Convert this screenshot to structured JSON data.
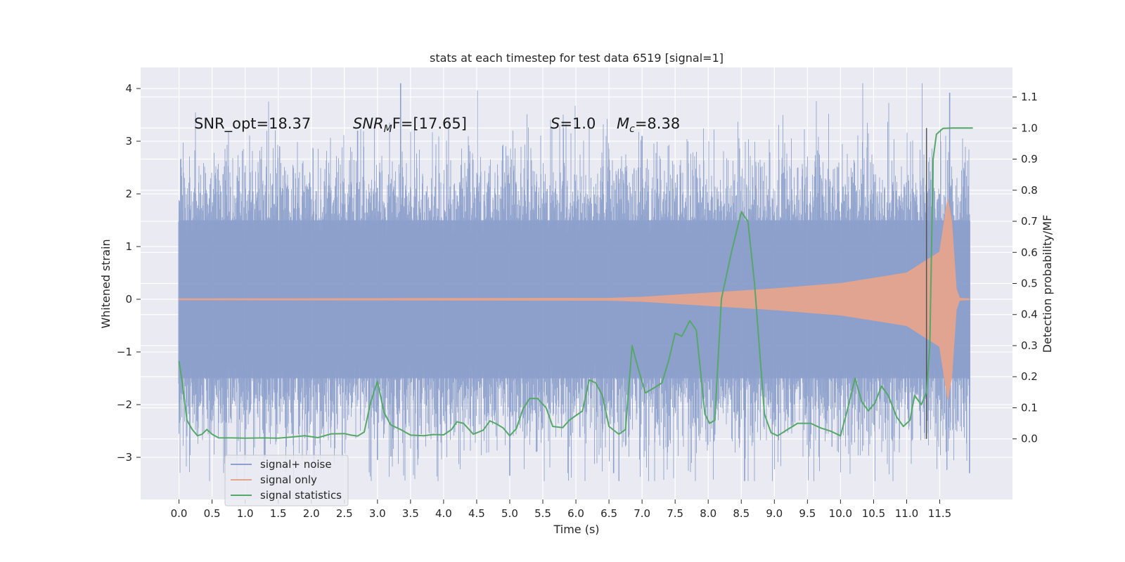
{
  "chart_data": {
    "type": "line",
    "title": "stats at each timestep for test data 6519 [signal=1]",
    "xlabel": "Time (s)",
    "ylabel": "Whitened strain",
    "ylabel_right": "Detection probability/MF",
    "xlim": [
      -0.58,
      12.6
    ],
    "ylim": [
      -3.8,
      4.4
    ],
    "ylim_right": [
      -0.195,
      1.195
    ],
    "x_ticks": [
      "0.0",
      "0.5",
      "1.0",
      "1.5",
      "2.0",
      "2.5",
      "3.0",
      "3.5",
      "4.0",
      "4.5",
      "5.0",
      "5.5",
      "6.0",
      "6.5",
      "7.0",
      "7.5",
      "8.0",
      "8.5",
      "9.0",
      "9.5",
      "10.0",
      "10.5",
      "11.0",
      "11.5"
    ],
    "y_ticks": [
      "4",
      "3",
      "2",
      "1",
      "0",
      "−1",
      "−2",
      "−3"
    ],
    "y_ticks_right": [
      "1.1",
      "1.0",
      "0.9",
      "0.8",
      "0.7",
      "0.6",
      "0.5",
      "0.4",
      "0.3",
      "0.2",
      "0.1",
      "0.0"
    ],
    "grid": true,
    "legend_position": "lower-left",
    "annotations": {
      "snr_opt": "SNR_opt=18.37",
      "snr_mf_label": "SNR",
      "snr_mf_sub": "M",
      "snr_mf_rest": "F=[17.65]",
      "s_label": "S",
      "s_rest": "=1.0",
      "mc_label": "M",
      "mc_sub": "c",
      "mc_rest": "=8.38"
    },
    "vline_x": 11.3,
    "series": [
      {
        "name": "signal+ noise",
        "color": "#8da0cb",
        "x_range": [
          0.0,
          11.95
        ],
        "envelope_upper": 1.5,
        "envelope_lower": -1.5,
        "peak_max": 4.1,
        "peak_min": -3.45
      },
      {
        "name": "signal only",
        "color": "#e5a48c",
        "chirp_peak_time": 11.65,
        "amplitude_points": [
          [
            0.0,
            0.01
          ],
          [
            6.5,
            0.02
          ],
          [
            7.0,
            0.04
          ],
          [
            8.0,
            0.12
          ],
          [
            9.0,
            0.2
          ],
          [
            10.0,
            0.3
          ],
          [
            11.0,
            0.5
          ],
          [
            11.5,
            0.9
          ],
          [
            11.62,
            1.9
          ],
          [
            11.68,
            1.5
          ],
          [
            11.75,
            0.2
          ],
          [
            11.8,
            0.02
          ],
          [
            11.95,
            0.01
          ]
        ]
      },
      {
        "name": "signal statistics",
        "color": "#55a868",
        "axis": "right",
        "points": [
          [
            0.0,
            0.25
          ],
          [
            0.05,
            0.18
          ],
          [
            0.12,
            0.06
          ],
          [
            0.2,
            0.03
          ],
          [
            0.28,
            0.01
          ],
          [
            0.35,
            0.015
          ],
          [
            0.42,
            0.03
          ],
          [
            0.5,
            0.015
          ],
          [
            0.6,
            0.003
          ],
          [
            0.8,
            0.003
          ],
          [
            1.0,
            0.002
          ],
          [
            1.3,
            0.003
          ],
          [
            1.5,
            0.002
          ],
          [
            1.7,
            0.006
          ],
          [
            1.9,
            0.01
          ],
          [
            2.1,
            0.004
          ],
          [
            2.3,
            0.016
          ],
          [
            2.5,
            0.017
          ],
          [
            2.6,
            0.012
          ],
          [
            2.7,
            0.009
          ],
          [
            2.8,
            0.022
          ],
          [
            2.9,
            0.12
          ],
          [
            3.0,
            0.185
          ],
          [
            3.1,
            0.085
          ],
          [
            3.2,
            0.045
          ],
          [
            3.35,
            0.03
          ],
          [
            3.5,
            0.012
          ],
          [
            3.7,
            0.01
          ],
          [
            3.85,
            0.014
          ],
          [
            4.0,
            0.013
          ],
          [
            4.12,
            0.03
          ],
          [
            4.2,
            0.055
          ],
          [
            4.3,
            0.05
          ],
          [
            4.45,
            0.015
          ],
          [
            4.6,
            0.028
          ],
          [
            4.7,
            0.058
          ],
          [
            4.8,
            0.048
          ],
          [
            4.9,
            0.035
          ],
          [
            5.0,
            0.01
          ],
          [
            5.1,
            0.033
          ],
          [
            5.2,
            0.096
          ],
          [
            5.3,
            0.13
          ],
          [
            5.42,
            0.13
          ],
          [
            5.55,
            0.1
          ],
          [
            5.65,
            0.04
          ],
          [
            5.8,
            0.036
          ],
          [
            5.9,
            0.06
          ],
          [
            6.0,
            0.075
          ],
          [
            6.1,
            0.09
          ],
          [
            6.2,
            0.19
          ],
          [
            6.3,
            0.18
          ],
          [
            6.4,
            0.14
          ],
          [
            6.5,
            0.04
          ],
          [
            6.65,
            0.015
          ],
          [
            6.75,
            0.03
          ],
          [
            6.85,
            0.3
          ],
          [
            6.95,
            0.22
          ],
          [
            7.05,
            0.148
          ],
          [
            7.15,
            0.16
          ],
          [
            7.3,
            0.18
          ],
          [
            7.4,
            0.25
          ],
          [
            7.5,
            0.34
          ],
          [
            7.6,
            0.33
          ],
          [
            7.65,
            0.35
          ],
          [
            7.72,
            0.38
          ],
          [
            7.82,
            0.35
          ],
          [
            7.95,
            0.08
          ],
          [
            8.02,
            0.05
          ],
          [
            8.1,
            0.06
          ],
          [
            8.2,
            0.45
          ],
          [
            8.35,
            0.6
          ],
          [
            8.5,
            0.73
          ],
          [
            8.6,
            0.7
          ],
          [
            8.7,
            0.5
          ],
          [
            8.85,
            0.08
          ],
          [
            8.95,
            0.02
          ],
          [
            9.05,
            0.01
          ],
          [
            9.2,
            0.03
          ],
          [
            9.35,
            0.05
          ],
          [
            9.55,
            0.05
          ],
          [
            9.7,
            0.035
          ],
          [
            9.85,
            0.025
          ],
          [
            10.0,
            0.01
          ],
          [
            10.1,
            0.09
          ],
          [
            10.22,
            0.195
          ],
          [
            10.32,
            0.12
          ],
          [
            10.42,
            0.09
          ],
          [
            10.52,
            0.115
          ],
          [
            10.62,
            0.17
          ],
          [
            10.72,
            0.14
          ],
          [
            10.85,
            0.07
          ],
          [
            10.95,
            0.04
          ],
          [
            11.05,
            0.06
          ],
          [
            11.12,
            0.14
          ],
          [
            11.22,
            0.11
          ],
          [
            11.3,
            0.15
          ],
          [
            11.35,
            0.3
          ],
          [
            11.4,
            0.9
          ],
          [
            11.45,
            0.98
          ],
          [
            11.55,
            0.999
          ],
          [
            11.7,
            1.0
          ],
          [
            12.0,
            1.0
          ]
        ]
      }
    ]
  }
}
